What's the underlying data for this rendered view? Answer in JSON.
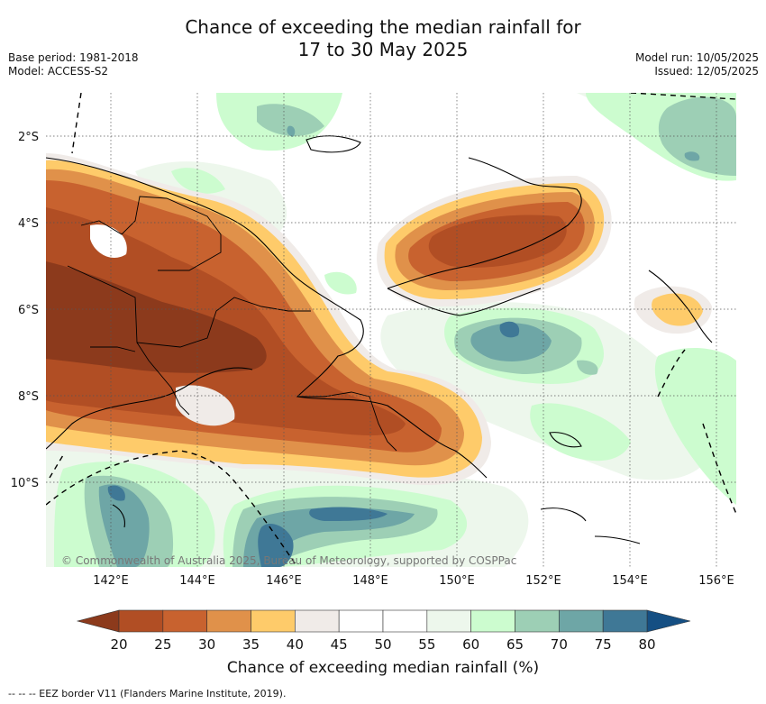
{
  "title_line1": "Chance of exceeding the median rainfall for",
  "title_line2": "17 to 30 May 2025",
  "meta_left": [
    "Base period: 1981-2018",
    "Model: ACCESS-S2"
  ],
  "meta_right": [
    "Model run: 10/05/2025",
    "Issued: 12/05/2025"
  ],
  "map": {
    "lon_ticks": [
      "142°E",
      "144°E",
      "146°E",
      "148°E",
      "150°E",
      "152°E",
      "154°E",
      "156°E"
    ],
    "lat_ticks": [
      "2°S",
      "4°S",
      "6°S",
      "8°S",
      "10°S"
    ],
    "copyright": "© Commonwealth of Australia 2025, Bureau of Meteorology, supported by COSPPac"
  },
  "colorbar": {
    "ticks": [
      "20",
      "25",
      "30",
      "35",
      "40",
      "45",
      "50",
      "55",
      "60",
      "65",
      "70",
      "75",
      "80"
    ],
    "colors": [
      "#8c3a1c",
      "#b14e24",
      "#c8622f",
      "#e0914a",
      "#fecb6a",
      "#f0ebe8",
      "#ffffff",
      "#ffffff",
      "#edf7ec",
      "#ccfccf",
      "#9dcfb5",
      "#6ea6a6",
      "#3f7896",
      "#154f83"
    ],
    "label": "Chance of exceeding median rainfall (%)"
  },
  "footer": "-- --  -- EEZ border V11 (Flanders Marine Institute, 2019)."
}
